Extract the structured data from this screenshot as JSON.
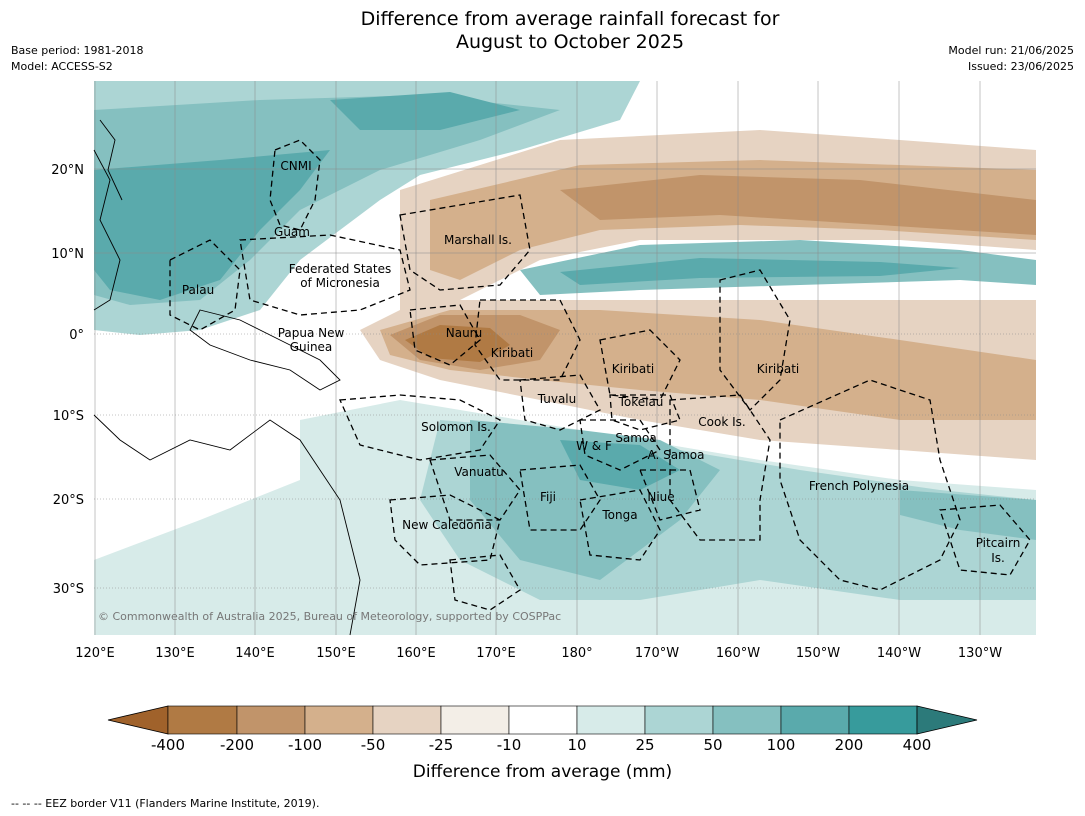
{
  "title": {
    "line1": "Difference from average rainfall forecast for",
    "line2": "August to October 2025"
  },
  "meta": {
    "base_period": "Base period: 1981-2018",
    "model": "Model: ACCESS-S2",
    "model_run": "Model run: 21/06/2025",
    "issued": "Issued: 23/06/2025"
  },
  "map": {
    "lat_labels": [
      "20°N",
      "10°N",
      "0°",
      "10°S",
      "20°S",
      "30°S"
    ],
    "lon_labels": [
      "120°E",
      "130°E",
      "140°E",
      "150°E",
      "160°E",
      "170°E",
      "180°",
      "170°W",
      "160°W",
      "150°W",
      "140°W",
      "130°W"
    ],
    "region_labels": [
      "CNMI",
      "Guam",
      "Marshall Is.",
      "Federated States",
      "of Micronesia",
      "Palau",
      "Papua New",
      "Guinea",
      "Nauru",
      "Kiribati",
      "Kiribati",
      "Kiribati",
      "Tuvalu",
      "Tokelau",
      "Solomon Is.",
      "Cook Is.",
      "Samoa",
      "W & F",
      "A. Samoa",
      "Vanuatu",
      "Fiji",
      "Niue",
      "Tonga",
      "French Polynesia",
      "New Caledonia",
      "Pitcairn",
      "Is."
    ],
    "copyright": "© Commonwealth of Australia 2025, Bureau of Meteorology, supported by COSPPac"
  },
  "colorbar": {
    "labels": [
      "-400",
      "-200",
      "-100",
      "-50",
      "-25",
      "-10",
      "10",
      "25",
      "50",
      "100",
      "200",
      "400"
    ],
    "colors": [
      "#a0622b",
      "#b07a44",
      "#c1946a",
      "#d4b08c",
      "#e6d3c2",
      "#f3eee7",
      "#ffffff",
      "#d7ebe9",
      "#acd5d4",
      "#85c0c0",
      "#5aaaac",
      "#379b9c",
      "#2c7a7a"
    ],
    "title": "Difference from average (mm)"
  },
  "footer": "--  --  -- EEZ border V11 (Flanders Marine Institute, 2019)."
}
